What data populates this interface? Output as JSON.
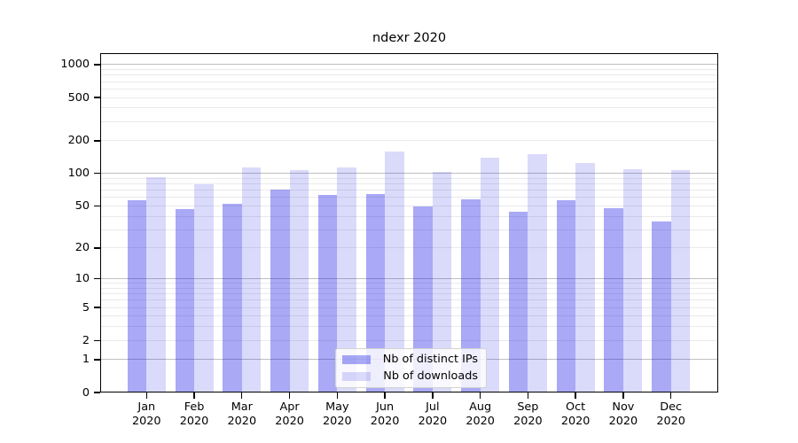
{
  "chart_data": {
    "type": "bar",
    "title": "ndexr 2020",
    "categories": [
      "Jan 2020",
      "Feb 2020",
      "Mar 2020",
      "Apr 2020",
      "May 2020",
      "Jun 2020",
      "Jul 2020",
      "Aug 2020",
      "Sep 2020",
      "Oct 2020",
      "Nov 2020",
      "Dec 2020"
    ],
    "series": [
      {
        "name": "Nb of distinct IPs",
        "color": "rgba(8,8,230,0.35)",
        "color_hex_on_white": "#a8a8f6",
        "values": [
          56,
          47,
          52,
          71,
          63,
          64,
          49,
          58,
          44,
          57,
          48,
          36
        ]
      },
      {
        "name": "Nb of downloads",
        "color": "rgba(8,8,230,0.15)",
        "color_hex_on_white": "#dadaf9",
        "values": [
          93,
          80,
          114,
          108,
          114,
          160,
          104,
          140,
          150,
          126,
          110,
          108
        ]
      }
    ],
    "xlabel": "",
    "ylabel": "",
    "yscale": "log1p",
    "ylim": [
      0,
      1000
    ],
    "y_ticks": [
      0,
      1,
      2,
      5,
      10,
      20,
      50,
      100,
      200,
      500,
      1000
    ],
    "grid": true,
    "grid_major_color": "#bfbfbf",
    "grid_minor_color": "#eaeaea",
    "legend_position": "lower center"
  }
}
